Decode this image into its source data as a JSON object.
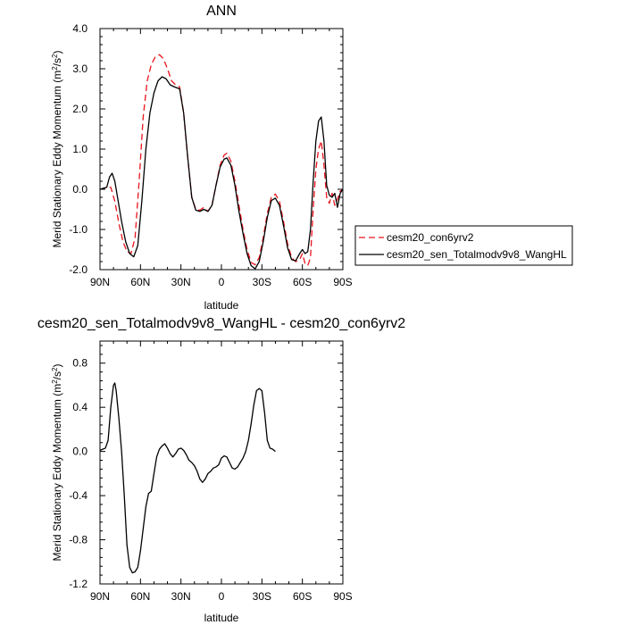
{
  "chart_data": [
    {
      "type": "line",
      "title": "ANN",
      "xlabel": "latitude",
      "ylabel": "Merid Stationary Eddy Momentum (m²/s²)",
      "ylabel_parts": {
        "text": "Merid Stationary Eddy Momentum (m",
        "sup1": "2",
        "mid": "/s",
        "sup2": "2",
        "end": ")"
      },
      "xlim": [
        -90,
        90
      ],
      "ylim": [
        -2.0,
        4.0
      ],
      "x_ticks": [
        -90,
        -60,
        -30,
        0,
        30,
        60,
        90
      ],
      "x_tick_labels": [
        "90N",
        "60N",
        "30N",
        "0",
        "30S",
        "60S",
        "90S"
      ],
      "y_ticks": [
        -2.0,
        -1.0,
        0.0,
        1.0,
        2.0,
        3.0,
        4.0
      ],
      "y_tick_labels": [
        "-2.0",
        "-1.0",
        "0.0",
        "1.0",
        "2.0",
        "3.0",
        "4.0"
      ],
      "legend_placement": "outside-right",
      "series": [
        {
          "name": "cesm20_con6yrv2",
          "color": "#e8141c",
          "dash": "dashed",
          "points": [
            [
              -90,
              0.0
            ],
            [
              -85,
              0.05
            ],
            [
              -82,
              0.05
            ],
            [
              -79,
              -0.3
            ],
            [
              -76,
              -0.85
            ],
            [
              -73,
              -1.3
            ],
            [
              -70,
              -1.55
            ],
            [
              -67,
              -1.6
            ],
            [
              -64,
              -1.2
            ],
            [
              -61,
              0.2
            ],
            [
              -58,
              1.8
            ],
            [
              -55,
              2.7
            ],
            [
              -52,
              3.1
            ],
            [
              -49,
              3.3
            ],
            [
              -46,
              3.35
            ],
            [
              -43,
              3.25
            ],
            [
              -40,
              3.0
            ],
            [
              -37,
              2.7
            ],
            [
              -34,
              2.6
            ],
            [
              -31,
              2.55
            ],
            [
              -28,
              1.9
            ],
            [
              -25,
              0.8
            ],
            [
              -22,
              -0.2
            ],
            [
              -19,
              -0.5
            ],
            [
              -16,
              -0.52
            ],
            [
              -13,
              -0.45
            ],
            [
              -10,
              -0.55
            ],
            [
              -7,
              -0.4
            ],
            [
              -4,
              0.1
            ],
            [
              -1,
              0.6
            ],
            [
              2,
              0.85
            ],
            [
              4,
              0.9
            ],
            [
              7,
              0.7
            ],
            [
              10,
              0.2
            ],
            [
              13,
              -0.4
            ],
            [
              16,
              -1.0
            ],
            [
              19,
              -1.5
            ],
            [
              22,
              -1.82
            ],
            [
              25,
              -1.88
            ],
            [
              28,
              -1.7
            ],
            [
              31,
              -1.2
            ],
            [
              34,
              -0.6
            ],
            [
              37,
              -0.2
            ],
            [
              40,
              -0.12
            ],
            [
              43,
              -0.3
            ],
            [
              46,
              -0.8
            ],
            [
              49,
              -1.35
            ],
            [
              52,
              -1.7
            ],
            [
              55,
              -1.8
            ],
            [
              58,
              -1.75
            ],
            [
              60,
              -1.6
            ],
            [
              62,
              -1.85
            ],
            [
              64,
              -1.9
            ],
            [
              66,
              -1.7
            ],
            [
              68,
              -0.5
            ],
            [
              70,
              0.5
            ],
            [
              72,
              1.0
            ],
            [
              74,
              1.2
            ],
            [
              76,
              0.6
            ],
            [
              78,
              -0.2
            ],
            [
              80,
              -0.35
            ],
            [
              82,
              -0.1
            ],
            [
              84,
              -0.4
            ],
            [
              86,
              -0.25
            ],
            [
              88,
              -0.05
            ],
            [
              90,
              0.0
            ]
          ]
        },
        {
          "name": "cesm20_sen_Totalmodv9v8_WangHL",
          "color": "#000000",
          "dash": "solid",
          "points": [
            [
              -90,
              0.0
            ],
            [
              -85,
              0.05
            ],
            [
              -83,
              0.3
            ],
            [
              -81,
              0.4
            ],
            [
              -79,
              0.2
            ],
            [
              -77,
              -0.2
            ],
            [
              -74,
              -0.8
            ],
            [
              -71,
              -1.3
            ],
            [
              -68,
              -1.6
            ],
            [
              -65,
              -1.68
            ],
            [
              -62,
              -1.4
            ],
            [
              -59,
              -0.3
            ],
            [
              -56,
              1.0
            ],
            [
              -53,
              1.9
            ],
            [
              -50,
              2.4
            ],
            [
              -47,
              2.7
            ],
            [
              -44,
              2.8
            ],
            [
              -41,
              2.75
            ],
            [
              -38,
              2.6
            ],
            [
              -35,
              2.55
            ],
            [
              -31,
              2.5
            ],
            [
              -28,
              1.9
            ],
            [
              -25,
              0.8
            ],
            [
              -22,
              -0.2
            ],
            [
              -19,
              -0.52
            ],
            [
              -16,
              -0.55
            ],
            [
              -13,
              -0.5
            ],
            [
              -10,
              -0.55
            ],
            [
              -7,
              -0.4
            ],
            [
              -4,
              0.1
            ],
            [
              -1,
              0.55
            ],
            [
              2,
              0.75
            ],
            [
              4,
              0.78
            ],
            [
              7,
              0.6
            ],
            [
              10,
              0.1
            ],
            [
              13,
              -0.55
            ],
            [
              16,
              -1.1
            ],
            [
              19,
              -1.6
            ],
            [
              22,
              -1.9
            ],
            [
              25,
              -1.98
            ],
            [
              28,
              -1.8
            ],
            [
              31,
              -1.3
            ],
            [
              34,
              -0.7
            ],
            [
              37,
              -0.28
            ],
            [
              40,
              -0.22
            ],
            [
              43,
              -0.4
            ],
            [
              46,
              -0.9
            ],
            [
              49,
              -1.45
            ],
            [
              52,
              -1.75
            ],
            [
              55,
              -1.78
            ],
            [
              58,
              -1.6
            ],
            [
              60,
              -1.5
            ],
            [
              62,
              -1.6
            ],
            [
              64,
              -1.55
            ],
            [
              66,
              -1.0
            ],
            [
              68,
              0.2
            ],
            [
              70,
              1.2
            ],
            [
              72,
              1.7
            ],
            [
              74,
              1.8
            ],
            [
              76,
              1.2
            ],
            [
              78,
              0.1
            ],
            [
              80,
              -0.15
            ],
            [
              82,
              -0.2
            ],
            [
              84,
              -0.1
            ],
            [
              86,
              -0.45
            ],
            [
              88,
              -0.1
            ],
            [
              90,
              0.0
            ]
          ]
        }
      ]
    },
    {
      "type": "line",
      "title": "cesm20_sen_Totalmodv9v8_WangHL - cesm20_con6yrv2",
      "xlabel": "latitude",
      "ylabel": "Merid Stationary Eddy Momentum (m²/s²)",
      "ylabel_parts": {
        "text": "Merid Stationary Eddy Momentum (m",
        "sup1": "2",
        "mid": "/s",
        "sup2": "2",
        "end": ")"
      },
      "xlim": [
        -90,
        90
      ],
      "ylim": [
        -1.2,
        1.0
      ],
      "x_ticks": [
        -90,
        -60,
        -30,
        0,
        30,
        60,
        90
      ],
      "x_tick_labels": [
        "90N",
        "60N",
        "30N",
        "0",
        "30S",
        "60S",
        "90S"
      ],
      "y_ticks": [
        -1.2,
        -0.8,
        -0.4,
        0.0,
        0.4,
        0.8
      ],
      "y_tick_labels": [
        "-1.2",
        "-0.8",
        "-0.4",
        "0.0",
        "0.4",
        "0.8"
      ],
      "series": [
        {
          "color": "#000000",
          "dash": "solid",
          "points": [
            [
              -90,
              0.01
            ],
            [
              -88,
              0.02
            ],
            [
              -86,
              0.03
            ],
            [
              -84,
              0.1
            ],
            [
              -82,
              0.4
            ],
            [
              -80,
              0.6
            ],
            [
              -79,
              0.62
            ],
            [
              -78,
              0.55
            ],
            [
              -76,
              0.3
            ],
            [
              -74,
              0.0
            ],
            [
              -72,
              -0.4
            ],
            [
              -70,
              -0.85
            ],
            [
              -68,
              -1.05
            ],
            [
              -66,
              -1.1
            ],
            [
              -64,
              -1.09
            ],
            [
              -62,
              -1.05
            ],
            [
              -60,
              -0.9
            ],
            [
              -58,
              -0.7
            ],
            [
              -56,
              -0.5
            ],
            [
              -54,
              -0.38
            ],
            [
              -52,
              -0.36
            ],
            [
              -50,
              -0.2
            ],
            [
              -48,
              -0.05
            ],
            [
              -46,
              0.02
            ],
            [
              -44,
              0.05
            ],
            [
              -42,
              0.07
            ],
            [
              -40,
              0.03
            ],
            [
              -38,
              -0.02
            ],
            [
              -36,
              -0.05
            ],
            [
              -34,
              -0.02
            ],
            [
              -32,
              0.02
            ],
            [
              -30,
              0.03
            ],
            [
              -28,
              0.01
            ],
            [
              -26,
              -0.03
            ],
            [
              -24,
              -0.08
            ],
            [
              -22,
              -0.1
            ],
            [
              -20,
              -0.13
            ],
            [
              -18,
              -0.18
            ],
            [
              -16,
              -0.25
            ],
            [
              -14,
              -0.28
            ],
            [
              -12,
              -0.25
            ],
            [
              -10,
              -0.2
            ],
            [
              -8,
              -0.18
            ],
            [
              -6,
              -0.15
            ],
            [
              -4,
              -0.14
            ],
            [
              -2,
              -0.12
            ],
            [
              0,
              -0.06
            ],
            [
              2,
              -0.04
            ],
            [
              4,
              -0.05
            ],
            [
              6,
              -0.1
            ],
            [
              8,
              -0.15
            ],
            [
              10,
              -0.16
            ],
            [
              12,
              -0.14
            ],
            [
              14,
              -0.1
            ],
            [
              16,
              -0.06
            ],
            [
              18,
              0.0
            ],
            [
              20,
              0.1
            ],
            [
              22,
              0.25
            ],
            [
              24,
              0.42
            ],
            [
              26,
              0.55
            ],
            [
              28,
              0.57
            ],
            [
              30,
              0.55
            ],
            [
              32,
              0.35
            ],
            [
              34,
              0.1
            ],
            [
              36,
              0.03
            ],
            [
              38,
              0.02
            ],
            [
              40,
              0.0
            ]
          ]
        }
      ]
    }
  ],
  "legend": {
    "items": [
      {
        "label": "cesm20_con6yrv2",
        "color": "#e8141c",
        "dash": "dashed"
      },
      {
        "label": "cesm20_sen_Totalmodv9v8_WangHL",
        "color": "#000000",
        "dash": "solid"
      }
    ]
  }
}
